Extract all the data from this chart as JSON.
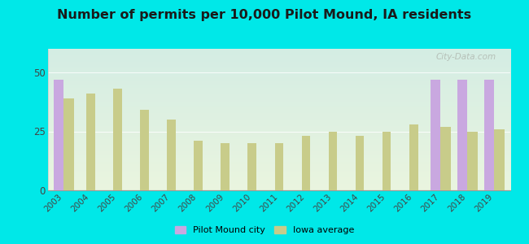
{
  "title": "Number of permits per 10,000 Pilot Mound, IA residents",
  "years": [
    2003,
    2004,
    2005,
    2006,
    2007,
    2008,
    2009,
    2010,
    2011,
    2012,
    2013,
    2014,
    2015,
    2016,
    2017,
    2018,
    2019
  ],
  "pilot_mound": [
    47,
    0,
    0,
    0,
    0,
    0,
    0,
    0,
    0,
    0,
    0,
    0,
    0,
    0,
    47,
    47,
    47
  ],
  "iowa_avg": [
    39,
    41,
    43,
    34,
    30,
    21,
    20,
    20,
    20,
    23,
    25,
    23,
    25,
    28,
    27,
    25,
    26
  ],
  "pilot_color": "#c9a8e0",
  "iowa_color": "#c8cc8a",
  "outer_bg": "#00e8e8",
  "title_color": "#1a1a1a",
  "watermark": "City-Data.com",
  "ylim": [
    0,
    60
  ],
  "yticks": [
    0,
    25,
    50
  ],
  "bar_width": 0.38,
  "title_fontsize": 11.5,
  "grad_top": "#d4ede4",
  "grad_bottom": "#eaf5df"
}
